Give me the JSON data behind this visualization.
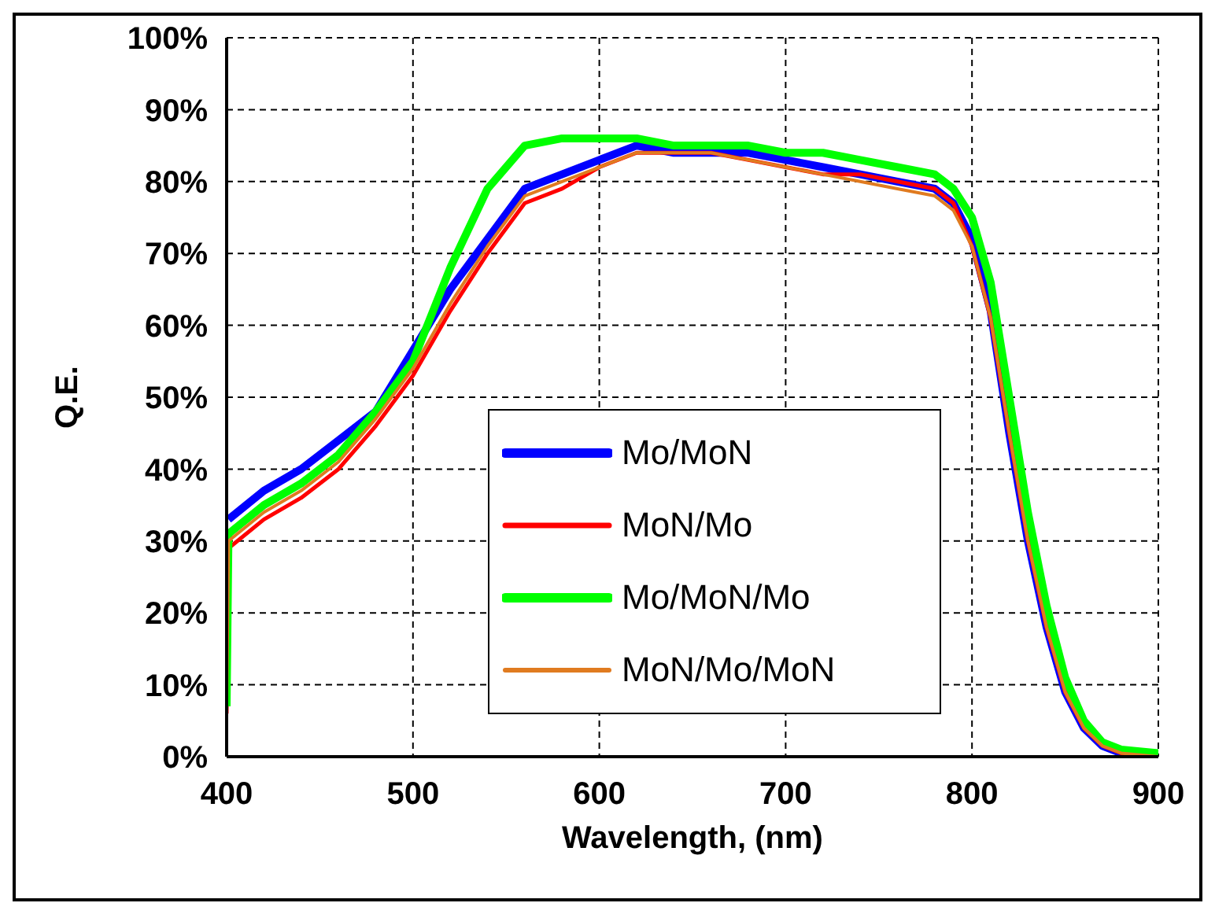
{
  "chart_data": {
    "type": "line",
    "xlabel": "Wavelength, (nm)",
    "ylabel": "Q.E.",
    "x": [
      400,
      401,
      420,
      440,
      460,
      480,
      500,
      520,
      540,
      560,
      580,
      600,
      620,
      640,
      660,
      680,
      700,
      720,
      740,
      760,
      780,
      790,
      800,
      810,
      820,
      830,
      840,
      850,
      860,
      870,
      880,
      900
    ],
    "series": [
      {
        "name": "Mo/MoN",
        "color": "#0000ff",
        "values": [
          null,
          33,
          37,
          40,
          44,
          48,
          null,
          65,
          72,
          79,
          81,
          83,
          85,
          84,
          84,
          84,
          83,
          82,
          81,
          80,
          79,
          77,
          72,
          62,
          45,
          30,
          18,
          9,
          4,
          1.5,
          0.5,
          0
        ]
      },
      {
        "name": "MoN/Mo",
        "color": "#ff0000",
        "values": [
          6,
          29,
          33,
          36,
          40,
          46,
          53,
          62,
          70,
          77,
          79,
          82,
          84,
          84,
          84,
          83,
          82,
          81,
          81,
          80,
          79,
          77,
          71,
          61,
          45,
          30,
          18,
          9,
          4,
          1.5,
          0.5,
          0
        ]
      },
      {
        "name": "Mo/MoN/Mo",
        "color": "#00ff00",
        "values": [
          7,
          31,
          35,
          38,
          42,
          48,
          55,
          68,
          79,
          85,
          86,
          86,
          86,
          85,
          85,
          85,
          84,
          84,
          83,
          82,
          81,
          79,
          75,
          66,
          50,
          34,
          21,
          11,
          5,
          2,
          1,
          0.5
        ]
      },
      {
        "name": "MoN/Mo/MoN",
        "color": "#e07b20",
        "values": [
          7,
          30,
          34,
          37,
          41,
          47,
          54,
          63,
          71,
          78,
          80,
          82,
          84,
          84,
          84,
          83,
          82,
          81,
          80,
          79,
          78,
          76,
          71,
          61,
          45,
          30,
          18,
          9,
          4,
          1.5,
          0.5,
          0
        ]
      }
    ],
    "xlim": [
      400,
      900
    ],
    "xticks": [
      400,
      500,
      600,
      700,
      800,
      900
    ],
    "ylim": [
      0,
      100
    ],
    "yticks": [
      {
        "value": 0,
        "label": "0%"
      },
      {
        "value": 10,
        "label": "10%"
      },
      {
        "value": 20,
        "label": "20%"
      },
      {
        "value": 30,
        "label": "30%"
      },
      {
        "value": 40,
        "label": "40%"
      },
      {
        "value": 50,
        "label": "50%"
      },
      {
        "value": 60,
        "label": "60%"
      },
      {
        "value": 70,
        "label": "70%"
      },
      {
        "value": 80,
        "label": "80%"
      },
      {
        "value": 90,
        "label": "90%"
      },
      {
        "value": 100,
        "label": "100%"
      }
    ],
    "grid": true,
    "legend": "bottom",
    "marker": "none",
    "line_style": "solid"
  }
}
